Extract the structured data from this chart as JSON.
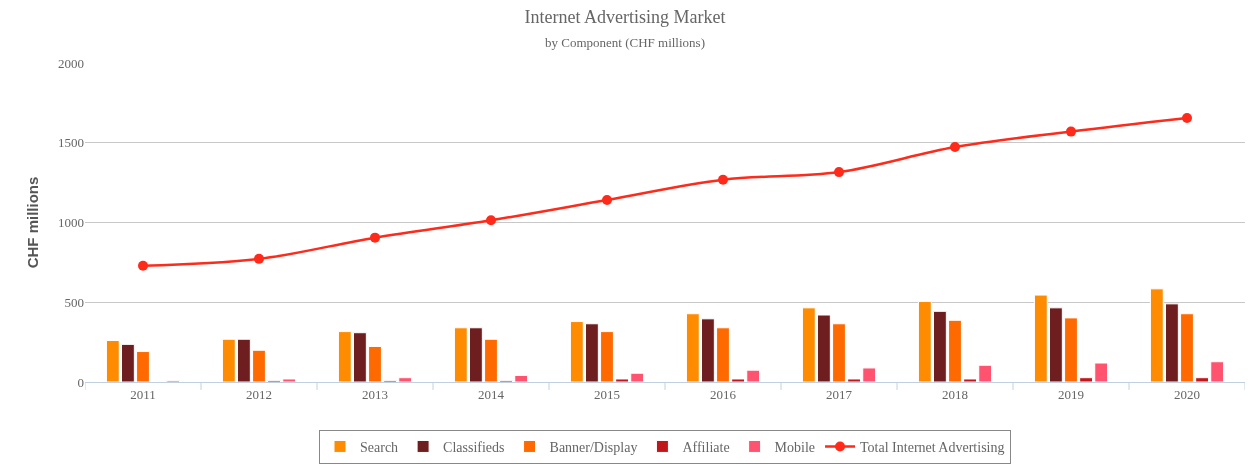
{
  "chart_data": {
    "type": "bar",
    "title": "Internet Advertising Market",
    "subtitle": "by Component (CHF millions)",
    "ylabel": "CHF millions",
    "categories": [
      "2011",
      "2012",
      "2013",
      "2014",
      "2015",
      "2016",
      "2017",
      "2018",
      "2019",
      "2020"
    ],
    "series": [
      {
        "name": "Search",
        "color": "#ff8c00",
        "values": [
          260,
          268,
          316,
          340,
          379,
          428,
          465,
          505,
          545,
          584
        ]
      },
      {
        "name": "Classifieds",
        "color": "#6e1e1e",
        "values": [
          236,
          268,
          309,
          340,
          365,
          396,
          420,
          443,
          465,
          490
        ]
      },
      {
        "name": "Banner/Display",
        "color": "#ff6a00",
        "values": [
          191,
          199,
          223,
          268,
          316,
          340,
          365,
          387,
          402,
          428
        ]
      },
      {
        "name": "Affiliate",
        "color": "#c0181a",
        "values": [
          null,
          10,
          10,
          10,
          19,
          19,
          19,
          19,
          27,
          27
        ]
      },
      {
        "name": "Mobile",
        "color": "#ff5370",
        "values": [
          10,
          19,
          27,
          41,
          55,
          74,
          88,
          105,
          119,
          127
        ]
      },
      {
        "name": "Total Internet Advertising",
        "type": "line",
        "color": "#ff2a1a",
        "marker": "circle",
        "values": [
          729,
          772,
          905,
          1014,
          1141,
          1268,
          1316,
          1473,
          1570,
          1655
        ]
      }
    ],
    "ylim": [
      0,
      2000
    ],
    "yticks": [
      0,
      500,
      1000,
      1500,
      2000
    ],
    "grid": "y",
    "legend": "bottom"
  }
}
